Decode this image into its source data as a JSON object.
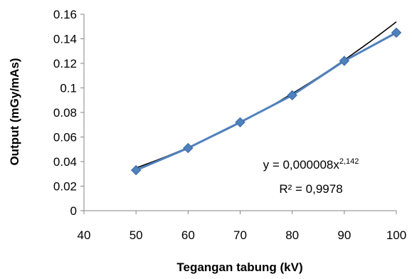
{
  "chart_data": {
    "type": "scatter",
    "title": "",
    "xlabel": "Tegangan tabung (kV)",
    "ylabel": "Output (mGy/mAs)",
    "xlim": [
      40,
      100
    ],
    "ylim": [
      0,
      0.16
    ],
    "xticks": [
      "40",
      "50",
      "60",
      "70",
      "80",
      "90",
      "100"
    ],
    "yticks": [
      "0",
      "0.02",
      "0.04",
      "0.06",
      "0.08",
      "0.1",
      "0.12",
      "0.14",
      "0.16"
    ],
    "grid": false,
    "legend": "none",
    "series": [
      {
        "x": [
          50,
          60,
          70,
          80,
          90,
          100
        ],
        "y": [
          0.033,
          0.051,
          0.072,
          0.094,
          0.122,
          0.145
        ],
        "color": "#4f81bd",
        "marker": "diamond",
        "connected": true
      }
    ],
    "trendline": {
      "type": "power",
      "coefficient": 8e-06,
      "exponent": 2.142,
      "color": "#000000",
      "equation_prefix": "y = 0,000008x",
      "equation_exponent": "2,142",
      "r2_label": "R² = 0,9978"
    }
  }
}
